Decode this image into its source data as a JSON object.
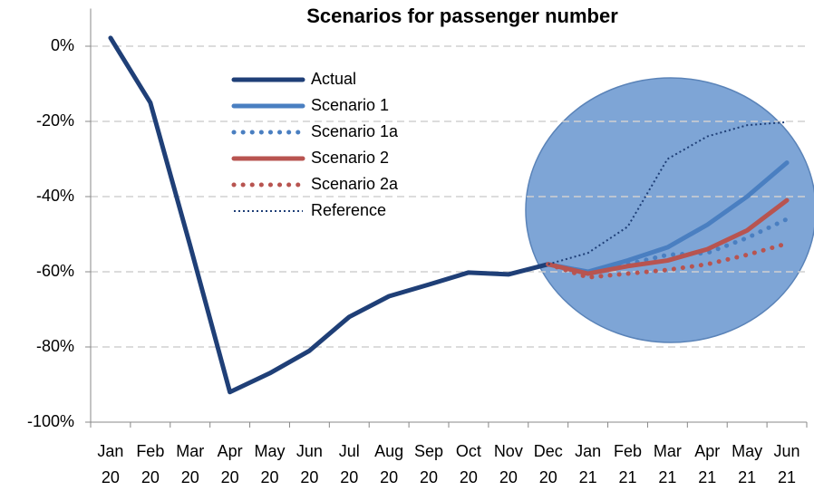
{
  "chart_data": {
    "type": "line",
    "title": "Scenarios for passenger number",
    "categories": [
      "Jan 20",
      "Feb 20",
      "Mar 20",
      "Apr 20",
      "May 20",
      "Jun 20",
      "Jul 20",
      "Aug 20",
      "Sep 20",
      "Oct 20",
      "Nov 20",
      "Dec 20",
      "Jan 21",
      "Feb 21",
      "Mar 21",
      "Apr 21",
      "May 21",
      "Jun 21"
    ],
    "series": [
      {
        "name": "Actual",
        "color": "#1f3f77",
        "line_style": "solid",
        "values": [
          2.2,
          -15,
          -53,
          -92,
          -87,
          -81,
          -72,
          -66.5,
          -63.4,
          -60.2,
          -60.7,
          -58,
          null,
          null,
          null,
          null,
          null,
          null
        ]
      },
      {
        "name": "Scenario 1",
        "color": "#4a7fc1",
        "line_style": "solid",
        "values": [
          null,
          null,
          null,
          null,
          null,
          null,
          null,
          null,
          null,
          null,
          null,
          -58,
          -60,
          -57,
          -53.5,
          -47.5,
          -40,
          -31
        ]
      },
      {
        "name": "Scenario 1a",
        "color": "#4a7fc1",
        "line_style": "dotted",
        "values": [
          null,
          null,
          null,
          null,
          null,
          null,
          null,
          null,
          null,
          null,
          null,
          -58,
          -60.5,
          -58,
          -55.5,
          -55,
          -51,
          -46
        ]
      },
      {
        "name": "Scenario 2",
        "color": "#b85450",
        "line_style": "solid",
        "values": [
          null,
          null,
          null,
          null,
          null,
          null,
          null,
          null,
          null,
          null,
          null,
          -58,
          -60.5,
          -58.5,
          -57,
          -54,
          -49,
          -41
        ]
      },
      {
        "name": "Scenario 2a",
        "color": "#b85450",
        "line_style": "dotted",
        "values": [
          null,
          null,
          null,
          null,
          null,
          null,
          null,
          null,
          null,
          null,
          null,
          -58,
          -61.5,
          -60.5,
          -59.5,
          -58,
          -55.5,
          -52.5
        ]
      },
      {
        "name": "Reference",
        "color": "#1f3f77",
        "line_style": "thin-dotted",
        "values": [
          null,
          null,
          null,
          null,
          null,
          null,
          null,
          null,
          null,
          null,
          null,
          -58,
          -55,
          -48,
          -30,
          -24,
          -21,
          -20.2
        ]
      }
    ],
    "ylim": [
      -100,
      10
    ],
    "yticks": [
      {
        "value": -100,
        "label": "-100%"
      },
      {
        "value": -80,
        "label": "-80%"
      },
      {
        "value": -60,
        "label": "-60%"
      },
      {
        "value": -40,
        "label": "-40%"
      },
      {
        "value": -20,
        "label": "-20%"
      },
      {
        "value": 0,
        "label": "0%"
      }
    ],
    "grid": true
  }
}
